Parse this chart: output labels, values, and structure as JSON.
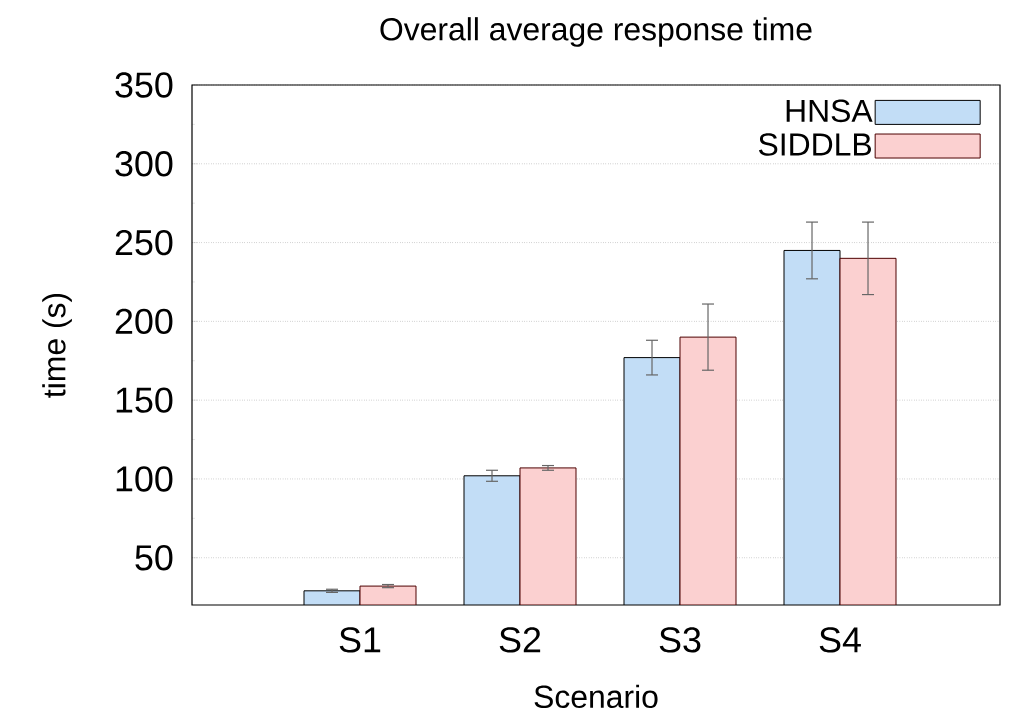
{
  "chart_data": {
    "type": "bar",
    "title": "Overall average response time",
    "xlabel": "Scenario",
    "ylabel": "time (s)",
    "categories": [
      "S1",
      "S2",
      "S3",
      "S4"
    ],
    "series": [
      {
        "name": "HNSA",
        "color": "#c2ddf6",
        "values": [
          29,
          102,
          177,
          245
        ],
        "errors": [
          1,
          3.5,
          11,
          18
        ]
      },
      {
        "name": "SIDDLB",
        "color": "#fbd0d0",
        "values": [
          32,
          107,
          190,
          240
        ],
        "errors": [
          1,
          1.5,
          21,
          23
        ]
      }
    ],
    "ylim": [
      20,
      350
    ],
    "yticks": [
      50,
      100,
      150,
      200,
      250,
      300,
      350
    ],
    "grid": "y",
    "legend": "top right"
  }
}
